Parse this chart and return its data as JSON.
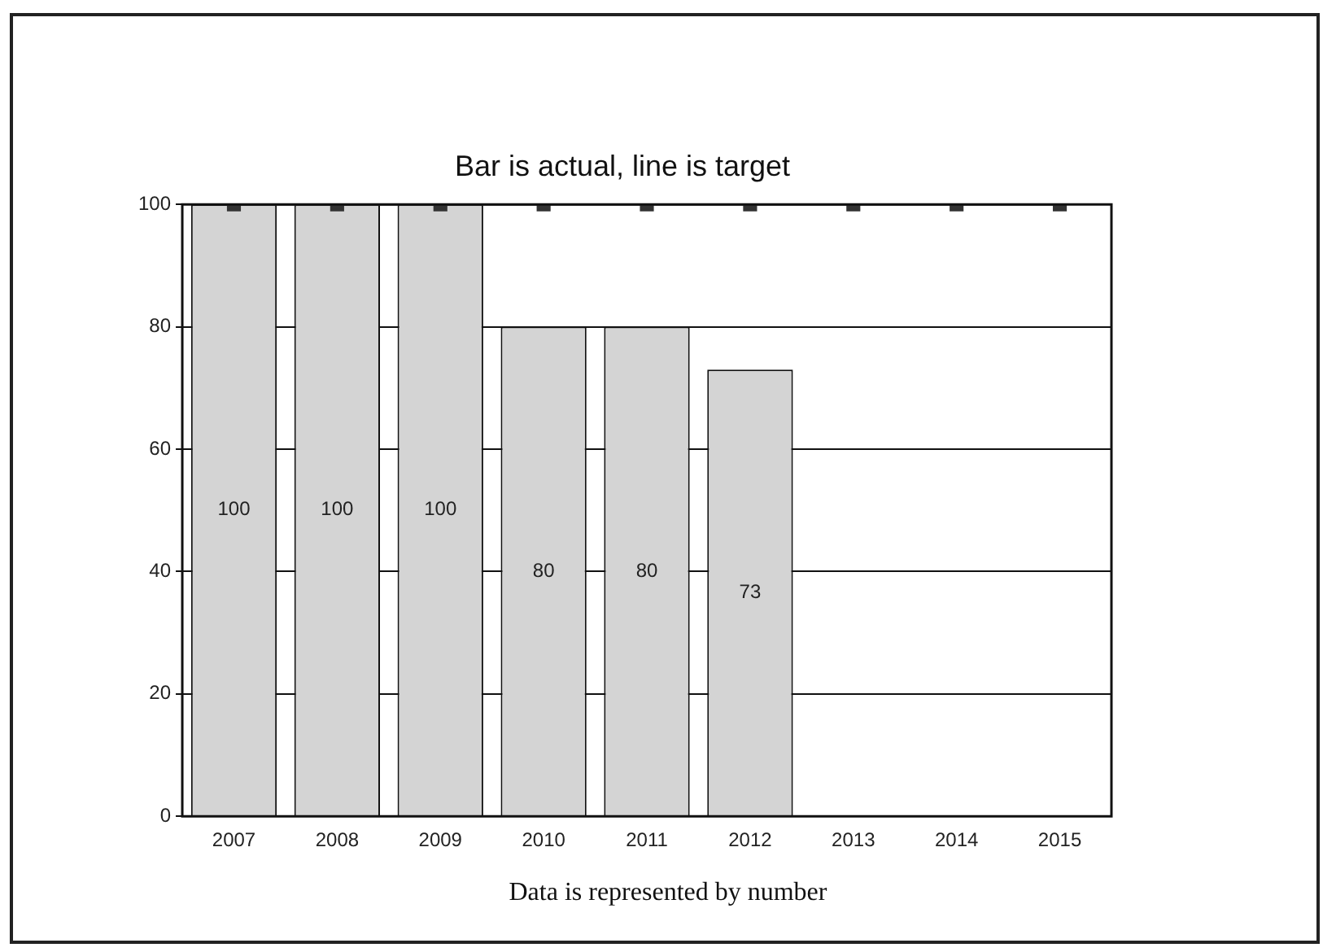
{
  "chart_data": {
    "type": "bar",
    "title": "Bar is actual, line is target",
    "categories": [
      "2007",
      "2008",
      "2009",
      "2010",
      "2011",
      "2012",
      "2013",
      "2014",
      "2015"
    ],
    "series": [
      {
        "color": "#d4d4d4",
        "values": [
          100,
          100,
          100,
          80,
          80,
          73,
          null,
          null,
          null
        ],
        "value_labels": [
          "100",
          "100",
          "100",
          "80",
          "80",
          "73",
          null,
          null,
          null
        ]
      },
      {
        "type": "line",
        "color": "#333333",
        "values": [
          100,
          100,
          100,
          100,
          100,
          100,
          100,
          100,
          100
        ],
        "marker": "square"
      }
    ],
    "ylim": [
      0,
      100
    ],
    "yticks": [
      0,
      20,
      40,
      60,
      80,
      100
    ],
    "grid": "y",
    "legend": false,
    "annotations": [
      "Data is represented by number"
    ]
  }
}
